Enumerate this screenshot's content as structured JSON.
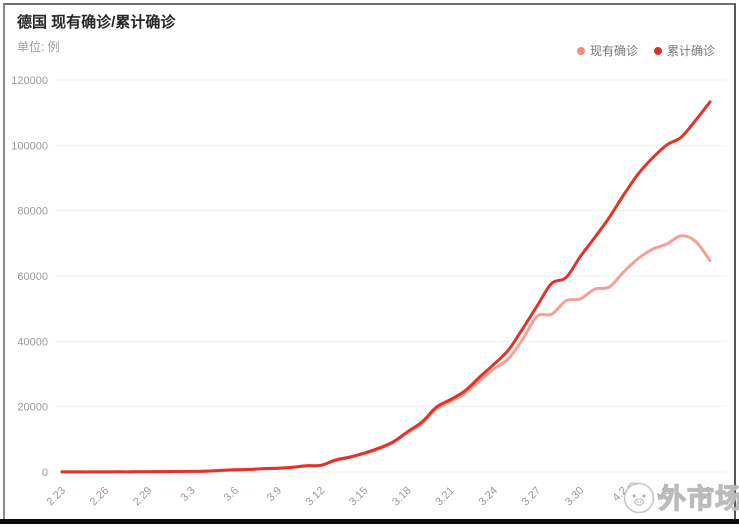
{
  "header": {
    "title": "德国 现有确诊/累计确诊",
    "subtitle": "单位: 例"
  },
  "legend": {
    "items": [
      {
        "label": "现有确诊",
        "color": "#f28b7d"
      },
      {
        "label": "累计确诊",
        "color": "#df3028"
      }
    ]
  },
  "watermark": {
    "text": "外市场",
    "logo_icon": "cartoon-face-logo"
  },
  "style": {
    "grid_line_color": "#f0f0f0",
    "axis_label_color": "#9a9a9a",
    "current_line_color": "#f5a096",
    "cumulative_line_color": "#e1332c"
  },
  "chart_data": {
    "type": "line",
    "smooth": true,
    "grid": "horizontal",
    "legend_position": "top-right",
    "title": "德国 现有确诊/累计确诊",
    "unit_label": "单位: 例",
    "ylim": [
      0,
      120000
    ],
    "y_ticks": [
      0,
      20000,
      40000,
      60000,
      80000,
      100000,
      120000
    ],
    "x_tick_every": 3,
    "x": [
      "2.23",
      "2.24",
      "2.25",
      "2.26",
      "2.27",
      "2.28",
      "2.29",
      "3.1",
      "3.2",
      "3.3",
      "3.4",
      "3.5",
      "3.6",
      "3.7",
      "3.8",
      "3.9",
      "3.10",
      "3.11",
      "3.12",
      "3.13",
      "3.14",
      "3.15",
      "3.16",
      "3.17",
      "3.18",
      "3.19",
      "3.20",
      "3.21",
      "3.22",
      "3.23",
      "3.24",
      "3.25",
      "3.26",
      "3.27",
      "3.28",
      "3.29",
      "3.30",
      "3.31",
      "4.1",
      "4.2",
      "4.3",
      "4.4",
      "4.5",
      "4.6",
      "4.7",
      "4.8"
    ],
    "series": [
      {
        "name": "现有确诊",
        "color": "#f5a096",
        "values": [
          16,
          16,
          17,
          26,
          45,
          47,
          77,
          127,
          155,
          190,
          255,
          470,
          655,
          780,
          1015,
          1145,
          1420,
          1860,
          2020,
          3580,
          4460,
          5640,
          7080,
          9000,
          12000,
          14900,
          19300,
          21600,
          24100,
          27900,
          31600,
          34700,
          40700,
          47700,
          48300,
          52400,
          53000,
          56000,
          56600,
          61200,
          65300,
          68200,
          69800,
          72300,
          70600,
          64700
        ]
      },
      {
        "name": "累计确诊",
        "color": "#e1332c",
        "values": [
          16,
          16,
          17,
          27,
          46,
          48,
          79,
          130,
          159,
          196,
          262,
          482,
          670,
          799,
          1040,
          1176,
          1457,
          1908,
          2078,
          3675,
          4585,
          5795,
          7272,
          9257,
          12327,
          15320,
          19848,
          22213,
          24873,
          29056,
          32986,
          37323,
          43938,
          50871,
          57695,
          59500,
          66000,
          71808,
          77872,
          84794,
          91159,
          96092,
          100123,
          102500,
          107663,
          113296
        ]
      }
    ]
  }
}
